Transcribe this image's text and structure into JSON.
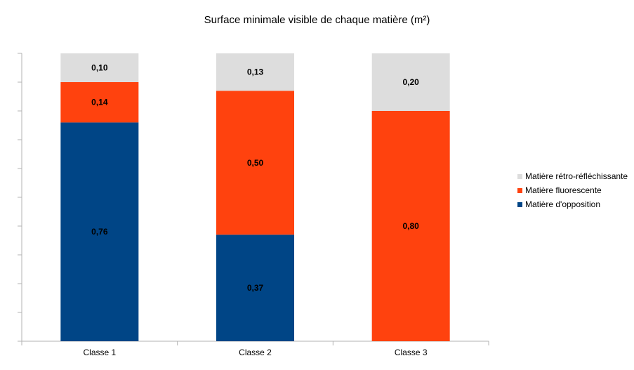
{
  "chart_data": {
    "type": "bar",
    "stacked": true,
    "title": "Surface minimale visible de chaque matière (m²)",
    "xlabel": "",
    "ylabel": "",
    "ylim": [
      0,
      1.0
    ],
    "y_ticks": 10,
    "grid": false,
    "legend_position": "right",
    "categories": [
      "Classe 1",
      "Classe 2",
      "Classe 3"
    ],
    "series": [
      {
        "name": "Matière d'opposition",
        "color": "#004586",
        "values": [
          0.76,
          0.37,
          0
        ],
        "labels": [
          "0,76",
          "0,37",
          ""
        ]
      },
      {
        "name": "Matière fluorescente",
        "color": "#ff420e",
        "values": [
          0.14,
          0.5,
          0.8
        ],
        "labels": [
          "0,14",
          "0,50",
          "0,80"
        ]
      },
      {
        "name": "Matière rétro-réfléchissante",
        "color": "#dddddd",
        "values": [
          0.1,
          0.13,
          0.2
        ],
        "labels": [
          "0,10",
          "0,13",
          "0,20"
        ]
      }
    ]
  }
}
